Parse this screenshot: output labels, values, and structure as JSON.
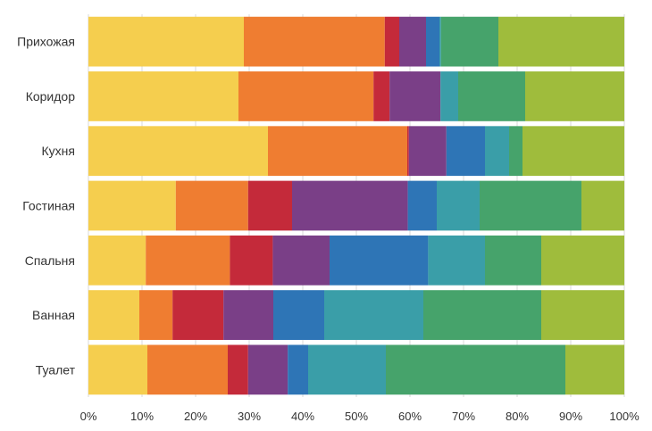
{
  "chart_data": {
    "type": "bar",
    "orientation": "horizontal",
    "stacked": "percent",
    "title": "",
    "xlabel": "",
    "ylabel": "",
    "xlim": [
      0,
      100
    ],
    "x_ticks": [
      "0%",
      "10%",
      "20%",
      "30%",
      "40%",
      "50%",
      "60%",
      "70%",
      "80%",
      "90%",
      "100%"
    ],
    "grid": true,
    "legend": "none",
    "categories": [
      "Прихожая",
      "Коридор",
      "Кухня",
      "Гостиная",
      "Спальня",
      "Ванная",
      "Туалет"
    ],
    "series": [
      {
        "color": "#F5CE4E",
        "values": [
          29.0,
          28.0,
          33.5,
          16.3,
          10.7,
          9.5,
          11.0
        ]
      },
      {
        "color": "#EF7D31",
        "values": [
          26.3,
          25.2,
          26.0,
          13.5,
          15.7,
          6.2,
          15.0
        ]
      },
      {
        "color": "#C42A3A",
        "values": [
          2.7,
          3.0,
          0.3,
          8.2,
          8.0,
          9.5,
          3.8
        ]
      },
      {
        "color": "#7A3F87",
        "values": [
          5.0,
          9.5,
          7.0,
          21.6,
          10.6,
          9.3,
          7.4
        ]
      },
      {
        "color": "#2E75B6",
        "values": [
          2.5,
          0.0,
          7.2,
          5.4,
          18.4,
          9.5,
          3.8
        ]
      },
      {
        "color": "#3A9EA8",
        "values": [
          0.3,
          3.3,
          4.5,
          8.0,
          10.6,
          18.5,
          14.5
        ]
      },
      {
        "color": "#46A36B",
        "values": [
          10.7,
          12.5,
          2.5,
          19.0,
          10.5,
          22.0,
          33.5
        ]
      },
      {
        "color": "#9FBC3C",
        "values": [
          23.5,
          18.5,
          19.0,
          8.0,
          15.5,
          15.5,
          11.0
        ]
      }
    ]
  }
}
